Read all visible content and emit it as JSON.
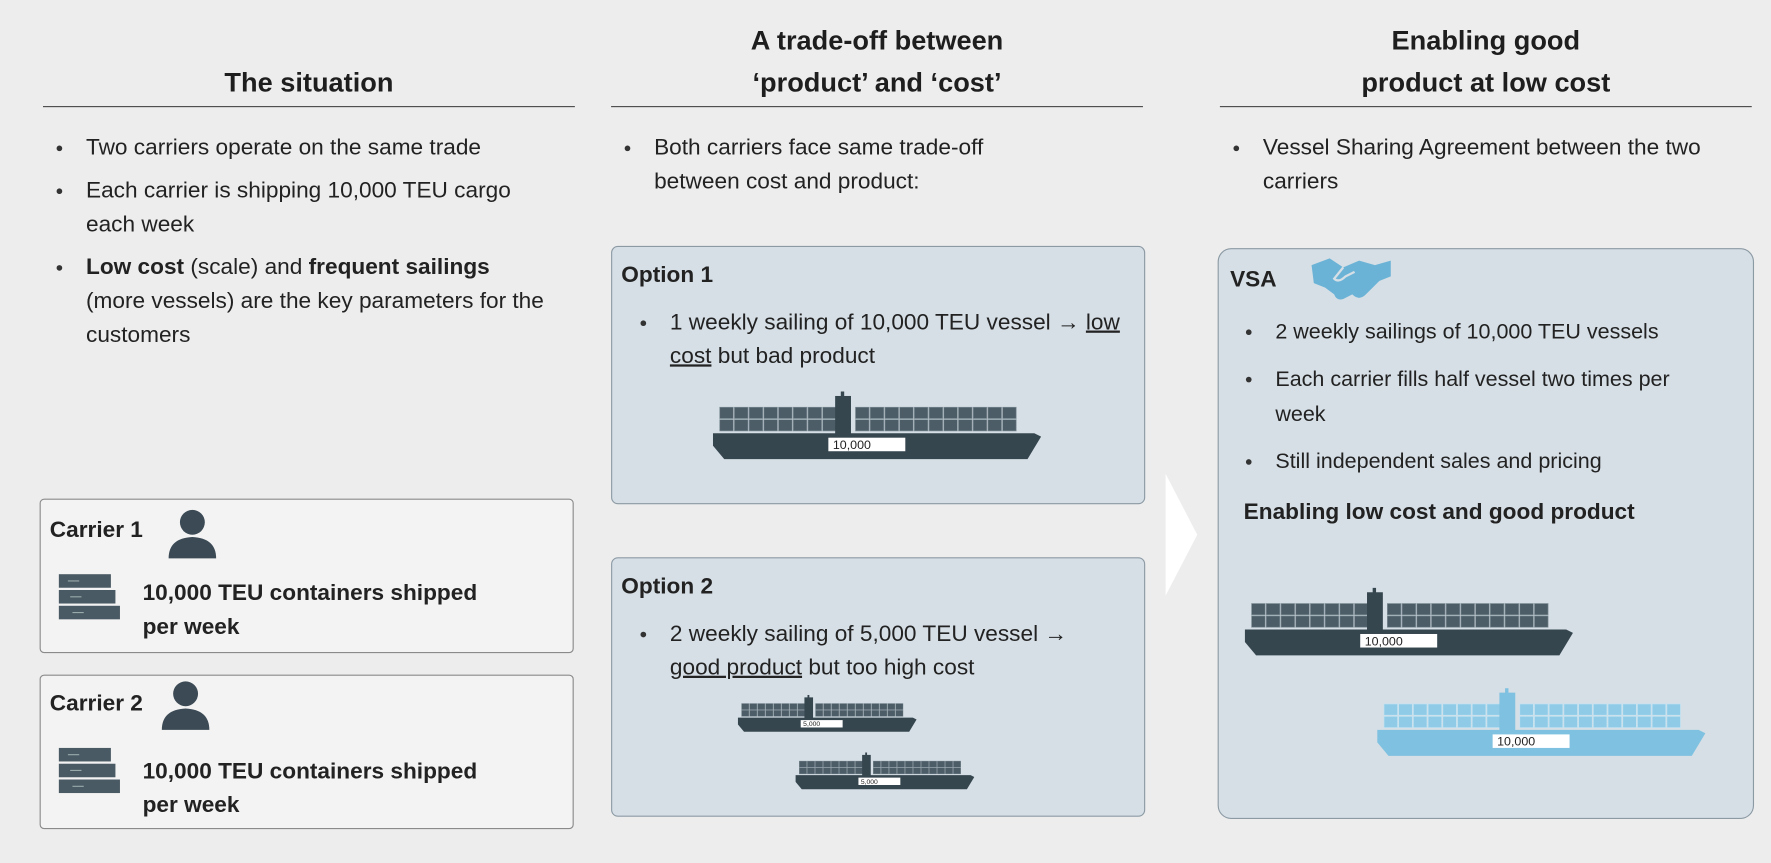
{
  "columns": [
    {
      "title": [
        "The situation"
      ],
      "bullets": [
        [
          {
            "text": "Two carriers operate on the same trade"
          }
        ],
        [
          {
            "text": "Each carrier is shipping 10,000 TEU cargo each week"
          }
        ],
        [
          {
            "text": "Low cost",
            "bold": true
          },
          {
            "text": " (scale) and "
          },
          {
            "text": "frequent sailings",
            "bold": true
          },
          {
            "text": " (more vessels) are the key parameters for the customers"
          }
        ]
      ],
      "carriers": [
        {
          "name": "Carrier 1",
          "text": "10,000 TEU containers shipped per week"
        },
        {
          "name": "Carrier 2",
          "text": "10,000 TEU containers shipped per week"
        }
      ]
    },
    {
      "title": [
        "A trade-off between",
        "‘product’ and ‘cost’"
      ],
      "bullets": [
        [
          {
            "text": "Both carriers face same trade-off between cost and product:"
          }
        ]
      ],
      "options": [
        {
          "title": "Option 1",
          "bullets": [
            [
              {
                "text": "1 weekly sailing of 10,000 TEU vessel → "
              },
              {
                "text": "low cost",
                "underline": true
              },
              {
                "text": " but bad product"
              }
            ]
          ],
          "ships": [
            "10,000"
          ]
        },
        {
          "title": "Option 2",
          "bullets": [
            [
              {
                "text": "2 weekly sailing of 5,000 TEU vessel → "
              },
              {
                "text": "good product",
                "underline": true
              },
              {
                "text": " but too high cost"
              }
            ]
          ],
          "ships": [
            "5,000",
            "5,000"
          ]
        }
      ]
    },
    {
      "title": [
        "Enabling good",
        "product at low cost"
      ],
      "bullets": [
        [
          {
            "text": "Vessel Sharing Agreement between the two carriers"
          }
        ]
      ],
      "box": {
        "title": "VSA",
        "bullets": [
          [
            {
              "text": "2 weekly sailings of 10,000 TEU vessels"
            }
          ],
          [
            {
              "text": "Each carrier fills half vessel two times per week"
            }
          ],
          [
            {
              "text": "Still independent sales and pricing"
            }
          ]
        ],
        "conclusion": "Enabling low cost and good product",
        "ships": [
          "10,000",
          "10,000"
        ]
      }
    }
  ]
}
